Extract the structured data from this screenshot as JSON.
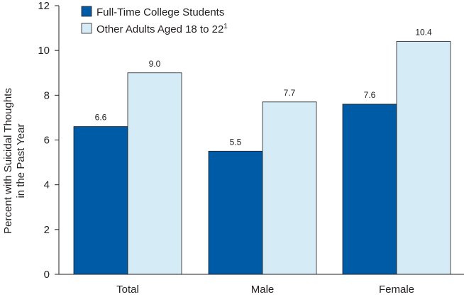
{
  "chart_data": {
    "type": "bar",
    "categories": [
      "Total",
      "Male",
      "Female"
    ],
    "series": [
      {
        "name": "Full-Time College Students",
        "values": [
          6.6,
          5.5,
          7.6
        ],
        "color": "#005ba6"
      },
      {
        "name": "Other Adults Aged 18 to 22",
        "superscript": "1",
        "values": [
          9.0,
          7.7,
          10.4
        ],
        "color": "#d5ebf6"
      }
    ],
    "value_labels": [
      [
        "6.6",
        "5.5",
        "7.6"
      ],
      [
        "9.0",
        "7.7",
        "10.4"
      ]
    ],
    "ylabel_lines": [
      "Percent with Suicidal Thoughts",
      "in the Past Year"
    ],
    "xlabel": "",
    "ylim": [
      0,
      12
    ],
    "yticks": [
      "0",
      "2",
      "4",
      "6",
      "8",
      "10",
      "12"
    ],
    "grid": false,
    "legend_position": "top-left"
  }
}
